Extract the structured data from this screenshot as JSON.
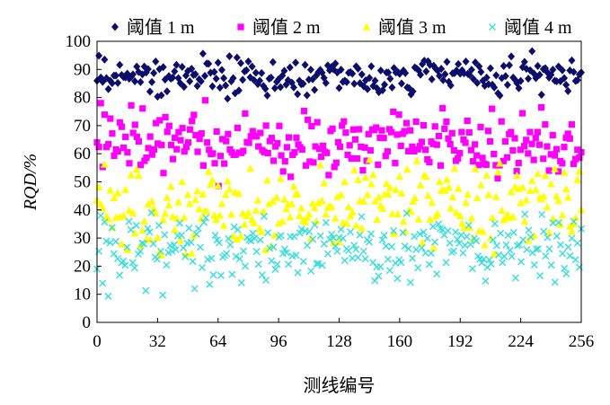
{
  "chart_data": {
    "type": "scatter",
    "title": "",
    "xlabel": "测线编号",
    "ylabel": "RQD/%",
    "xlim": [
      0,
      256
    ],
    "ylim": [
      0,
      100
    ],
    "x_ticks": [
      0,
      32,
      64,
      96,
      128,
      160,
      192,
      224,
      256
    ],
    "y_ticks": [
      0,
      10,
      20,
      30,
      40,
      50,
      60,
      70,
      80,
      90,
      100
    ],
    "grid": false,
    "legend_position": "top",
    "series": [
      {
        "name": "阈值 1 m",
        "marker": "diamond",
        "color": "#0d0d6b",
        "values": [
          86.0,
          94.9,
          87.1,
          85.6,
          93.5,
          86.9,
          83.0,
          86.0,
          85.1,
          87.8,
          87.8,
          85.2,
          91.6,
          88.0,
          87.3,
          87.2,
          88.5,
          86.7,
          87.3,
          88.2,
          85.8,
          91.0,
          89.1,
          85.5,
          88.2,
          91.0,
          88.9,
          90.1,
          82.1,
          85.5,
          88.7,
          92.8,
          80.3,
          90.1,
          80.8,
          90.8,
          86.4,
          82.2,
          87.6,
          86.7,
          87.1,
          89.3,
          91.6,
          86.9,
          85.1,
          90.9,
          83.8,
          87.8,
          89.4,
          85.8,
          90.2,
          88.0,
          88.3,
          84.1,
          86.5,
          85.8,
          95.6,
          87.7,
          92.1,
          92.0,
          88.8,
          84.0,
          89.1,
          86.7,
          92.4,
          83.5,
          89.8,
          86.9,
          84.3,
          79.6,
          94.7,
          85.8,
          86.9,
          81.5,
          94.2,
          82.5,
          92.2,
          86.3,
          89.3,
          89.7,
          92.8,
          87.2,
          91.0,
          86.2,
          88.8,
          84.8,
          86.0,
          88.7,
          84.1,
          83.1,
          80.7,
          86.7,
          87.1,
          92.6,
          83.3,
          85.6,
          86.5,
          83.7,
          87.8,
          89.5,
          84.6,
          86.2,
          90.7,
          85.3,
          83.6,
          92.4,
          81.2,
          86.0,
          84.7,
          84.9,
          91.6,
          80.8,
          86.4,
          89.9,
          86.5,
          82.7,
          87.9,
          89.0,
          89.8,
          88.8,
          87.0,
          85.2,
          91.4,
          89.7,
          90.9,
          90.0,
          92.1,
          88.9,
          83.4,
          89.9,
          85.6,
          86.0,
          85.5,
          88.8,
          89.0,
          88.5,
          84.9,
          91.1,
          90.3,
          85.1,
          88.2,
          84.0,
          86.1,
          83.0,
          87.0,
          91.1,
          84.1,
          86.0,
          83.3,
          81.9,
          89.6,
          82.6,
          84.6,
          88.9,
          88.9,
          86.7,
          83.6,
          90.5,
          88.9,
          89.1,
          88.4,
          85.0,
          89.6,
          88.7,
          83.6,
          83.3,
          81.1,
          82.2,
          90.7,
          90.3,
          89.7,
          88.1,
          91.9,
          93.1,
          89.3,
          92.9,
          91.6,
          86.5,
          91.3,
          90.3,
          89.6,
          87.7,
          90.2,
          86.2,
          88.3,
          92.7,
          85.6,
          84.3,
          88.6,
          88.7,
          89.6,
          91.9,
          88.5,
          89.7,
          88.6,
          92.8,
          88.4,
          88.0,
          89.9,
          86.6,
          92.5,
          85.2,
          91.1,
          89.1,
          86.0,
          84.2,
          87.1,
          84.7,
          90.4,
          84.6,
          83.6,
          87.9,
          81.5,
          80.7,
          86.9,
          91.2,
          87.6,
          84.5,
          91.5,
          94.6,
          87.1,
          86.3,
          85.1,
          83.3,
          85.9,
          90.8,
          92.7,
          90.2,
          86.7,
          89.7,
          96.5,
          88.5,
          86.9,
          91.2,
          88.1,
          81.0,
          90.1,
          90.4,
          89.0,
          87.1,
          88.1,
          89.9,
          86.0,
          85.8,
          91.0,
          85.8,
          89.7,
          86.9,
          84.5,
          82.3,
          89.6,
          93.2,
          89.1,
          85.9,
          86.2,
          88.2,
          88.9
        ]
      },
      {
        "name": "阈值 2 m",
        "marker": "square",
        "color": "#ff00ff",
        "values": [
          64.0,
          62.4,
          78.0,
          55.3,
          73.9,
          62.4,
          63.4,
          72.5,
          67.2,
          59.3,
          61.5,
          60.8,
          71.1,
          69.6,
          62.1,
          66.0,
          60.5,
          56.6,
          77.2,
          67.4,
          70.3,
          66.0,
          64.4,
          56.0,
          76.1,
          57.5,
          58.6,
          62.0,
          66.1,
          59.7,
          61.5,
          70.9,
          63.6,
          71.9,
          63.1,
          53.1,
          73.0,
          67.8,
          69.9,
          63.1,
          58.1,
          65.7,
          61.6,
          67.7,
          64.8,
          69.1,
          60.8,
          62.4,
          64.0,
          68.6,
          71.6,
          73.8,
          66.6,
          60.7,
          65.3,
          67.2,
          55.8,
          79.0,
          64.0,
          61.4,
          59.9,
          60.1,
          56.6,
          67.9,
          48.5,
          59.2,
          65.2,
          56.5,
          64.5,
          67.0,
          61.5,
          60.5,
          59.6,
          59.7,
          69.2,
          60.4,
          60.3,
          61.0,
          74.3,
          64.1,
          63.9,
          66.2,
          68.0,
          66.4,
          66.2,
          62.6,
          67.4,
          61.3,
          60.6,
          70.0,
          60.2,
          64.5,
          65.6,
          57.5,
          62.6,
          63.7,
          69.9,
          59.4,
          53.7,
          57.3,
          62.3,
          65.8,
          51.8,
          59.6,
          60.5,
          65.7,
          63.3,
          62.3,
          61.5,
          75.2,
          55.8,
          72.1,
          57.2,
          69.8,
          56.9,
          62.6,
          71.2,
          61.8,
          58.9,
          62.8,
          60.7,
          60.3,
          52.4,
          68.1,
          68.9,
          55.3,
          56.8,
          64.1,
          62.5,
          70.0,
          71.5,
          67.5,
          59.6,
          63.0,
          58.3,
          68.6,
          65.1,
          58.3,
          68.7,
          62.5,
          54.1,
          62.2,
          57.5,
          67.0,
          61.2,
          68.6,
          68.4,
          69.3,
          56.1,
          65.7,
          68.3,
          65.6,
          59.2,
          60.8,
          68.7,
          67.7,
          74.9,
          56.7,
          66.8,
          73.9,
          62.8,
          67.1,
          68.0,
          70.9,
          60.9,
          68.3,
          62.5,
          60.9,
          71.4,
          61.6,
          62.7,
          64.2,
          70.1,
          61.4,
          58.0,
          57.0,
          64.3,
          63.5,
          69.7,
          63.2,
          66.3,
          55.8,
          76.2,
          68.9,
          71.4,
          65.4,
          63.4,
          67.3,
          61.2,
          57.5,
          58.3,
          60.2,
          67.7,
          65.0,
          63.9,
          71.7,
          67.6,
          61.3,
          57.3,
          63.3,
          59.4,
          56.0,
          69.5,
          58.5,
          56.4,
          56.1,
          68.1,
          64.4,
          76.0,
          59.9,
          55.9,
          51.3,
          55.9,
          71.5,
          57.4,
          64.4,
          58.7,
          67.0,
          67.7,
          61.2,
          65.5,
          53.8,
          56.7,
          61.4,
          74.4,
          62.7,
          64.9,
          60.1,
          67.7,
          63.5,
          57.8,
          65.6,
          67.7,
          63.2,
          76.5,
          58.2,
          70.4,
          62.6,
          54.0,
          59.8,
          66.6,
          59.4,
          61.6,
          53.7,
          57.4,
          56.6,
          62.4,
          65.7,
          67.1,
          65.4,
          70.4,
          56.4,
          58.1,
          61.4,
          58.6,
          60.5
        ]
      },
      {
        "name": "阈值 3 m",
        "marker": "triangle",
        "color": "#ffff00",
        "values": [
          43.4,
          48.1,
          42.1,
          40.7,
          56.2,
          37.7,
          36.8,
          47.0,
          33.8,
          44.3,
          37.3,
          46.0,
          37.5,
          27.8,
          38.0,
          47.2,
          25.7,
          39.8,
          52.4,
          38.9,
          31.7,
          54.4,
          52.2,
          27.3,
          32.7,
          36.0,
          29.4,
          42.0,
          29.5,
          43.1,
          40.5,
          38.9,
          30.2,
          25.0,
          23.9,
          36.4,
          38.8,
          44.4,
          41.6,
          48.3,
          37.6,
          32.9,
          37.0,
          42.8,
          29.2,
          50.0,
          37.3,
          24.3,
          45.4,
          42.2,
          24.5,
          30.9,
          43.6,
          46.7,
          40.3,
          36.9,
          45.6,
          39.5,
          39.6,
          53.6,
          49.1,
          50.6,
          38.1,
          36.5,
          48.6,
          38.1,
          42.2,
          34.4,
          45.4,
          50.2,
          47.3,
          38.4,
          30.7,
          46.2,
          29.5,
          45.8,
          30.6,
          38.8,
          34.8,
          37.9,
          39.0,
          54.7,
          36.6,
          35.3,
          39.8,
          43.4,
          33.4,
          32.2,
          39.5,
          25.8,
          50.5,
          42.2,
          27.2,
          43.1,
          31.0,
          44.5,
          35.2,
          51.1,
          35.9,
          43.8,
          40.3,
          41.9,
          37.4,
          42.2,
          48.4,
          45.5,
          45.7,
          37.9,
          40.6,
          36.3,
          35.7,
          37.1,
          38.5,
          29.9,
          42.4,
          40.7,
          36.0,
          42.5,
          56.0,
          43.3,
          49.6,
          38.4,
          40.9,
          41.3,
          41.0,
          28.3,
          37.0,
          44.7,
          28.6,
          45.4,
          35.4,
          50.0,
          35.2,
          41.1,
          37.8,
          39.2,
          54.2,
          34.4,
          50.7,
          43.2,
          33.5,
          43.0,
          51.5,
          45.4,
          57.9,
          49.2,
          52.5,
          43.1,
          36.6,
          44.5,
          41.5,
          40.5,
          45.5,
          49.3,
          45.5,
          47.9,
          38.6,
          31.6,
          47.2,
          38.5,
          51.9,
          45.9,
          35.9,
          32.4,
          54.4,
          39.8,
          39.4,
          43.0,
          44.3,
          57.5,
          36.7,
          48.8,
          28.4,
          52.3,
          51.8,
          45.1,
          36.6,
          42.6,
          26.6,
          37.7,
          38.6,
          50.0,
          46.9,
          46.9,
          46.9,
          50.8,
          48.0,
          40.6,
          44.6,
          54.8,
          39.0,
          47.6,
          37.9,
          35.2,
          33.7,
          42.6,
          45.5,
          33.7,
          37.1,
          29.7,
          54.6,
          44.2,
          32.5,
          48.9,
          32.3,
          27.5,
          52.3,
          45.4,
          30.0,
          37.2,
          24.3,
          44.7,
          53.4,
          56.6,
          39.8,
          36.4,
          37.1,
          38.4,
          37.2,
          46.4,
          37.5,
          48.2,
          52.2,
          47.5,
          42.5,
          48.0,
          35.9,
          43.5,
          29.1,
          46.8,
          50.4,
          30.9,
          47.2,
          52.9,
          44.4,
          43.9,
          44.8,
          52.2,
          41.0,
          31.9,
          49.2,
          36.9,
          54.6,
          44.9,
          43.3,
          34.8,
          38.2,
          53.3,
          47.4,
          44.5,
          34.2,
          32.4,
          35.0,
          37.2,
          50.8,
          53.7,
          40.0
        ]
      },
      {
        "name": "阈值 4 m",
        "marker": "x",
        "color": "#33dddd",
        "values": [
          19.0,
          25.3,
          38.0,
          13.9,
          35.7,
          28.9,
          9.3,
          28.3,
          33.7,
          24.4,
          28.8,
          22.7,
          16.8,
          21.2,
          21.8,
          20.3,
          26.7,
          35.9,
          33.0,
          21.3,
          19.4,
          34.5,
          24.3,
          25.3,
          28.2,
          27.9,
          11.3,
          33.4,
          32.1,
          39.0,
          28.0,
          23.2,
          22.5,
          34.5,
          25.3,
          9.7,
          31.2,
          20.4,
          24.8,
          27.3,
          25.3,
          27.6,
          25.9,
          30.8,
          35.3,
          31.0,
          26.5,
          23.4,
          28.2,
          33.5,
          28.5,
          21.7,
          12.0,
          31.4,
          33.4,
          26.7,
          19.5,
          35.6,
          37.2,
          22.4,
          13.5,
          22.8,
          16.9,
          31.0,
          29.3,
          28.3,
          16.7,
          23.2,
          23.8,
          24.5,
          29.8,
          27.6,
          17.1,
          34.0,
          23.5,
          33.0,
          22.6,
          14.1,
          25.4,
          20.0,
          30.2,
          29.3,
          29.0,
          31.7,
          29.9,
          25.2,
          20.7,
          29.3,
          16.9,
          37.7,
          15.0,
          31.9,
          26.4,
          21.9,
          26.8,
          18.9,
          20.7,
          30.4,
          30.9,
          24.5,
          26.1,
          24.8,
          20.7,
          30.5,
          23.6,
          30.6,
          23.9,
          17.7,
          31.8,
          33.2,
          21.7,
          32.5,
          27.4,
          32.3,
          18.3,
          29.6,
          34.7,
          20.9,
          20.9,
          30.8,
          20.3,
          27.9,
          35.5,
          24.4,
          29.5,
          31.3,
          30.1,
          27.1,
          25.3,
          30.2,
          33.1,
          29.9,
          22.0,
          26.2,
          25.5,
          32.2,
          22.8,
          27.4,
          26.0,
          23.1,
          31.1,
          37.6,
          25.3,
          22.6,
          29.4,
          28.6,
          31.5,
          21.3,
          14.8,
          19.7,
          16.5,
          19.8,
          29.3,
          31.0,
          27.1,
          22.4,
          18.5,
          26.9,
          32.6,
          21.1,
          15.6,
          22.3,
          21.3,
          31.9,
          27.1,
          38.8,
          26.2,
          14.2,
          22.8,
          30.6,
          25.9,
          19.4,
          31.4,
          26.5,
          32.1,
          24.7,
          29.9,
          20.6,
          24.6,
          34.1,
          28.6,
          17.2,
          35.0,
          33.4,
          33.0,
          31.1,
          21.3,
          32.6,
          28.2,
          24.9,
          25.4,
          32.1,
          29.5,
          28.1,
          31.1,
          24.7,
          27.4,
          30.5,
          34.6,
          27.7,
          19.1,
          29.9,
          29.0,
          23.6,
          22.5,
          21.2,
          22.5,
          14.7,
          19.6,
          22.2,
          20.8,
          29.3,
          35.1,
          27.3,
          24.0,
          31.7,
          21.3,
          23.5,
          27.6,
          31.0,
          25.6,
          23.5,
          32.0,
          15.8,
          27.3,
          27.6,
          21.6,
          29.4,
          38.5,
          25.9,
          32.8,
          30.4,
          24.8,
          20.5,
          26.0,
          26.2,
          16.6,
          38.4,
          32.4,
          23.6,
          30.2,
          26.1,
          20.4,
          35.4,
          14.3,
          30.7,
          35.5,
          27.6,
          24.5,
          19.2,
          17.3,
          26.8,
          23.7,
          29.9,
          35.9,
          22.3,
          28.2,
          19.6,
          33.3
        ]
      }
    ]
  }
}
